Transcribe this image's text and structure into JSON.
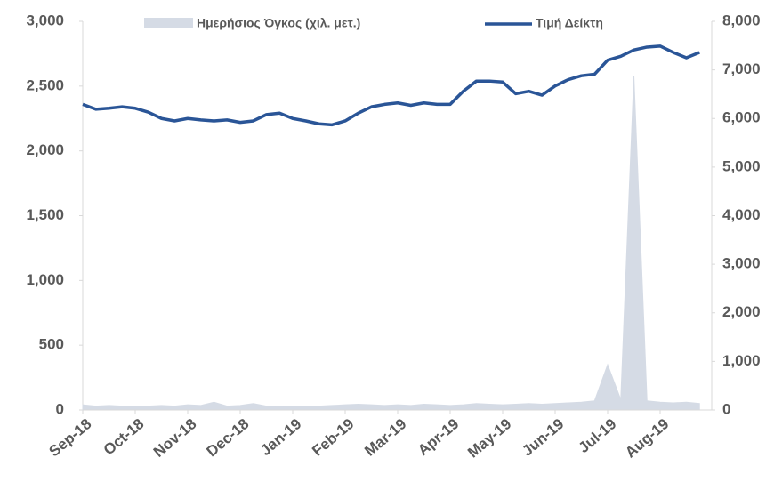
{
  "chart_data": {
    "type": "line",
    "categories": [
      "Sep-18",
      null,
      null,
      null,
      "Oct-18",
      null,
      null,
      null,
      "Nov-18",
      null,
      null,
      null,
      "Dec-18",
      null,
      null,
      null,
      "Jan-19",
      null,
      null,
      null,
      "Feb-19",
      null,
      null,
      null,
      "Mar-19",
      null,
      null,
      null,
      "Apr-19",
      null,
      null,
      null,
      "May-19",
      null,
      null,
      null,
      "Jun-19",
      null,
      null,
      null,
      "Jul-19",
      null,
      null,
      null,
      "Aug-19",
      null,
      null,
      null
    ],
    "series": [
      {
        "name": "Ημερήσιος Όγκος (χιλ. μετ.)",
        "type": "area",
        "color": "#d5dbe5",
        "axis": "y",
        "values": [
          40,
          30,
          35,
          30,
          25,
          30,
          35,
          30,
          40,
          35,
          60,
          30,
          35,
          50,
          30,
          25,
          30,
          25,
          30,
          35,
          40,
          45,
          40,
          35,
          40,
          35,
          45,
          40,
          35,
          40,
          50,
          45,
          40,
          45,
          50,
          45,
          50,
          55,
          60,
          70,
          350,
          80,
          2580,
          70,
          60,
          55,
          60,
          50
        ]
      },
      {
        "name": "Τιμή Δείκτη",
        "type": "line",
        "color": "#2a5597",
        "axis": "y2",
        "values": [
          6290,
          6190,
          6210,
          6240,
          6210,
          6130,
          6000,
          5950,
          6000,
          5970,
          5950,
          5970,
          5920,
          5950,
          6080,
          6110,
          6000,
          5950,
          5890,
          5870,
          5950,
          6110,
          6240,
          6290,
          6320,
          6270,
          6320,
          6290,
          6290,
          6560,
          6770,
          6770,
          6750,
          6510,
          6560,
          6480,
          6670,
          6800,
          6880,
          6910,
          7200,
          7280,
          7410,
          7470,
          7490,
          7360,
          7250,
          7360
        ]
      }
    ],
    "ylim": [
      0,
      3000
    ],
    "yticks": [
      0,
      500,
      {
        "value": 1000,
        "label": "1,000"
      },
      {
        "value": 1500,
        "label": "1,500"
      },
      {
        "value": 2000,
        "label": "2,000"
      },
      {
        "value": 2500,
        "label": "2,500"
      },
      {
        "value": 3000,
        "label": "3,000"
      }
    ],
    "y2lim": [
      0,
      8000
    ],
    "y2ticks": [
      0,
      {
        "value": 1000,
        "label": "1,000"
      },
      {
        "value": 2000,
        "label": "2,000"
      },
      {
        "value": 3000,
        "label": "3,000"
      },
      {
        "value": 4000,
        "label": "4,000"
      },
      {
        "value": 5000,
        "label": "5,000"
      },
      {
        "value": 6000,
        "label": "6,000"
      },
      {
        "value": 7000,
        "label": "7,000"
      },
      {
        "value": 8000,
        "label": "8,000"
      }
    ],
    "legend": "top"
  }
}
